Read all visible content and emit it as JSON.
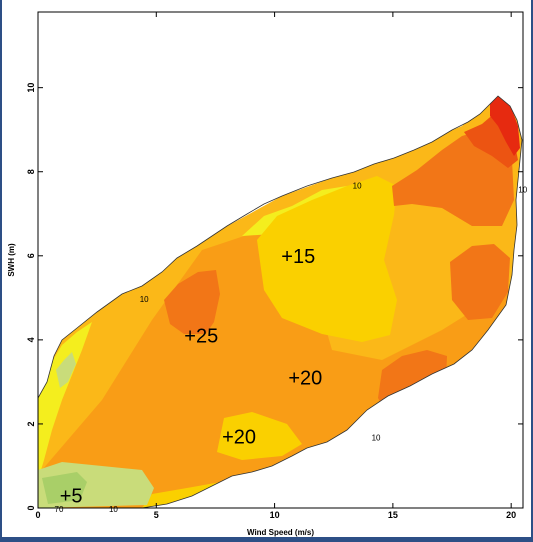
{
  "chart_data": {
    "type": "heatmap",
    "title": "",
    "xlabel": "Wind Speed (m/s)",
    "ylabel": "SWH (m)",
    "xlim": [
      0,
      20.5
    ],
    "ylim": [
      0,
      11.8
    ],
    "x_ticks": [
      0,
      5,
      10,
      15,
      20
    ],
    "y_ticks": [
      0,
      2,
      4,
      6,
      8,
      10
    ],
    "grid": false,
    "colors": {
      "pale_green": "#c9dc7a",
      "green": "#a9cf68",
      "yellow": "#f4ee1e",
      "gold": "#fad000",
      "light_orange": "#fbb818",
      "orange": "#f99d16",
      "dark_orange": "#f27617",
      "red_orange": "#ec5412",
      "red": "#e62a10"
    },
    "region_labels": [
      {
        "text": "+15",
        "x": 11.0,
        "y": 6.0
      },
      {
        "text": "+25",
        "x": 6.9,
        "y": 4.1
      },
      {
        "text": "+20",
        "x": 11.3,
        "y": 3.1
      },
      {
        "text": "+20",
        "x": 8.5,
        "y": 1.7
      },
      {
        "text": "+5",
        "x": 1.4,
        "y": 0.3
      }
    ],
    "contour_labels": [
      {
        "text": "10",
        "x": 13.3,
        "y": 7.6
      },
      {
        "text": "10",
        "x": 4.3,
        "y": 4.9
      },
      {
        "text": "10",
        "x": 14.1,
        "y": 1.6
      },
      {
        "text": "10",
        "x": 20.3,
        "y": 7.5
      },
      {
        "text": "10",
        "x": 3.0,
        "y": -0.1
      },
      {
        "text": "70",
        "x": 0.7,
        "y": -0.1
      }
    ],
    "contour_level": 10
  }
}
